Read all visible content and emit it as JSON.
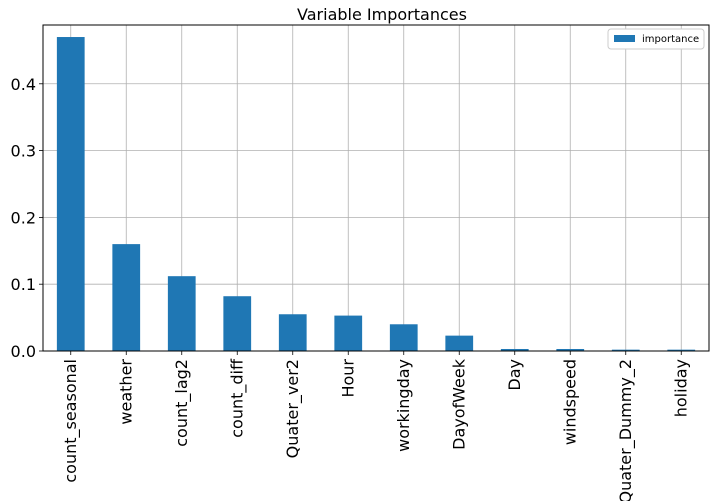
{
  "chart_data": {
    "type": "bar",
    "title": "Variable Importances",
    "xlabel": "",
    "ylabel": "",
    "categories": [
      "count_seasonal",
      "weather",
      "count_lag2",
      "count_diff",
      "Quater_ver2",
      "Hour",
      "workingday",
      "DayofWeek",
      "Day",
      "windspeed",
      "Quater_Dummy_2",
      "holiday"
    ],
    "series": [
      {
        "name": "importance",
        "values": [
          0.47,
          0.16,
          0.112,
          0.082,
          0.055,
          0.053,
          0.04,
          0.023,
          0.003,
          0.003,
          0.002,
          0.002
        ]
      }
    ],
    "ylim": [
      0,
      0.488
    ],
    "yticks": [
      0.0,
      0.1,
      0.2,
      0.3,
      0.4
    ],
    "ytick_labels": [
      "0.0",
      "0.1",
      "0.2",
      "0.3",
      "0.4"
    ],
    "grid": true,
    "legend_position": "top-right",
    "bar_color": "#1f77b4"
  }
}
